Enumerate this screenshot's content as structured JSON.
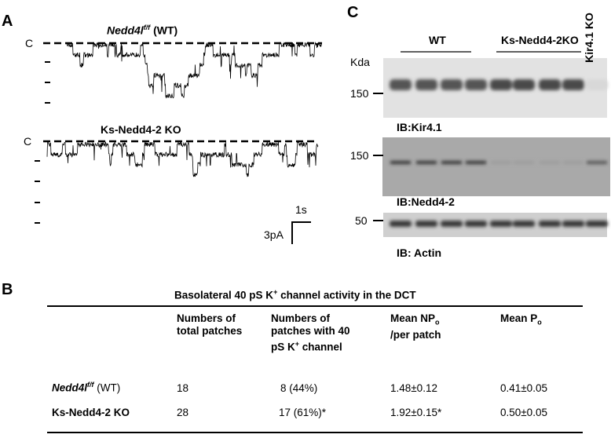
{
  "panels": {
    "a": {
      "label": "A",
      "traces": [
        {
          "title": "Nedd4l",
          "title_sup": "f/f",
          "title_suffix": " (WT)",
          "closed_label": "C"
        },
        {
          "title": "Ks-Nedd4-2 KO",
          "closed_label": "C"
        }
      ],
      "scale": {
        "time": "1s",
        "current": "3pA"
      }
    },
    "c": {
      "label": "C",
      "groups": [
        "WT",
        "Ks-Nedd4-2KO",
        "Kir4.1 KO"
      ],
      "unit": "Kda",
      "blots": [
        {
          "marker": "150",
          "label": "IB:Kir4.1"
        },
        {
          "marker": "150",
          "label": "IB:Nedd4-2"
        },
        {
          "marker": "50",
          "label": "IB: Actin"
        }
      ]
    },
    "b": {
      "label": "B",
      "table": {
        "title": [
          "Basolateral 40 pS K",
          "+",
          " channel activity in the DCT"
        ],
        "headers": [
          [
            "Numbers of total patches"
          ],
          [
            "Numbers of patches with 40 pS K",
            "+",
            " channel"
          ],
          [
            "Mean NP",
            "o",
            " /per patch"
          ],
          [
            "Mean P",
            "o"
          ]
        ],
        "rows": [
          {
            "name": [
              "Nedd4l",
              "f/f",
              " (WT)"
            ],
            "cells": [
              "18",
              "8 (44%)",
              "1.48±0.12",
              "0.41±0.05"
            ]
          },
          {
            "name": [
              "Ks-Nedd4-2 KO"
            ],
            "cells": [
              "28",
              "17 (61%)*",
              "1.92±0.15*",
              "0.50±0.05"
            ]
          }
        ]
      }
    }
  }
}
